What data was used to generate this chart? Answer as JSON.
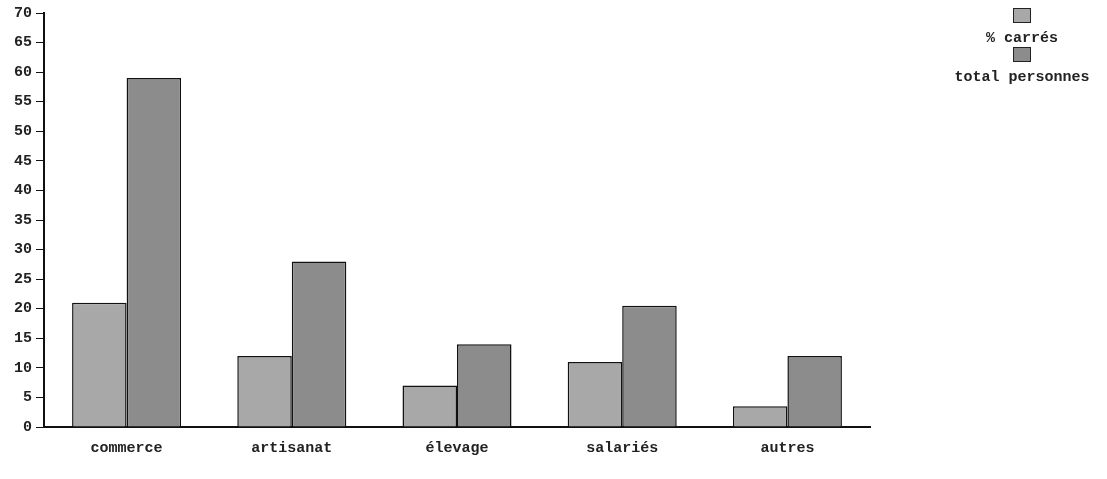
{
  "chart_data": {
    "type": "bar",
    "categories": [
      "commerce",
      "artisanat",
      "élevage",
      "salariés",
      "autres"
    ],
    "series": [
      {
        "name": "% carrés",
        "color": "#a8a8a8",
        "values": [
          21,
          12,
          7,
          11,
          3.5
        ]
      },
      {
        "name": "total personnes",
        "color": "#8c8c8c",
        "values": [
          59,
          28,
          14,
          20.5,
          12
        ]
      }
    ],
    "ylim": [
      0,
      70
    ],
    "yticks": [
      0,
      5,
      10,
      15,
      20,
      25,
      30,
      35,
      40,
      45,
      50,
      55,
      60,
      65,
      70
    ],
    "grid": false,
    "legend": "top right"
  }
}
